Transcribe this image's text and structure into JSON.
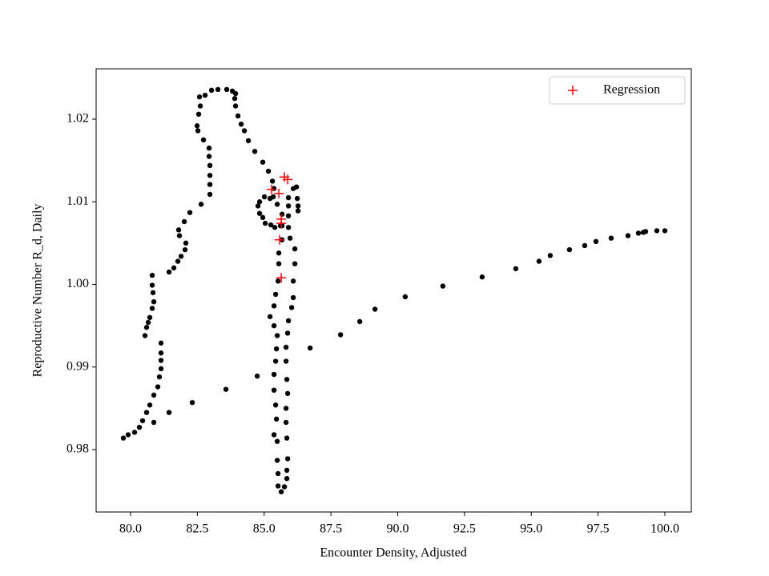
{
  "chart_data": {
    "type": "scatter",
    "x_label": "Encounter Density, Adjusted",
    "y_label": "Reproductive Number R_d, Daily",
    "xlim": [
      78.71,
      100.99
    ],
    "ylim": [
      0.97245,
      1.0261
    ],
    "xticks": [
      {
        "value": 80,
        "label": "80.0"
      },
      {
        "value": 82.5,
        "label": "82.5"
      },
      {
        "value": 85,
        "label": "85.0"
      },
      {
        "value": 87.5,
        "label": "87.5"
      },
      {
        "value": 90,
        "label": "90.0"
      },
      {
        "value": 92.5,
        "label": "92.5"
      },
      {
        "value": 95,
        "label": "95.0"
      },
      {
        "value": 97.5,
        "label": "97.5"
      },
      {
        "value": 100,
        "label": "100.0"
      }
    ],
    "yticks": [
      0.98,
      0.99,
      {
        "value": 1,
        "label": "1.00"
      },
      1.01,
      1.02
    ],
    "legend": "upper right",
    "series": [
      {
        "color": "#000000",
        "marker": "o",
        "x": [
          81.44,
          82.31,
          83.57,
          84.74,
          86.72,
          87.86,
          88.58,
          89.15,
          90.28,
          91.69,
          93.16,
          94.42,
          95.29,
          95.71,
          96.43,
          97.0,
          97.42,
          97.99,
          98.62,
          99.01,
          99.19,
          99.28,
          99.7,
          100.0,
          79.73,
          79.91,
          80.15,
          80.33,
          80.45,
          80.6,
          80.72,
          80.87,
          81.02,
          81.08,
          81.14,
          81.14,
          81.14,
          81.14,
          80.87,
          80.54,
          80.6,
          80.66,
          80.72,
          80.81,
          80.87,
          80.84,
          80.81,
          80.81,
          81.44,
          81.62,
          81.77,
          81.89,
          82.04,
          82.07,
          81.83,
          81.8,
          82.01,
          82.22,
          82.64,
          82.97,
          82.97,
          82.97,
          82.97,
          82.94,
          82.94,
          82.73,
          82.52,
          82.49,
          82.55,
          82.61,
          82.58,
          82.79,
          83.03,
          83.27,
          83.6,
          83.81,
          83.93,
          83.9,
          83.93,
          84.02,
          84.14,
          84.26,
          84.41,
          84.65,
          84.95,
          85.16,
          85.31,
          85.37,
          85.34,
          85.01,
          84.83,
          84.77,
          84.83,
          84.95,
          85.04,
          85.25,
          85.4,
          85.61,
          85.91,
          85.91,
          85.91,
          85.91,
          86.09,
          86.21,
          86.24,
          86.27,
          86.27,
          85.97,
          86.15,
          86.15,
          86.09,
          86.09,
          86.03,
          85.91,
          85.88,
          85.82,
          85.82,
          85.85,
          85.88,
          85.82,
          85.82,
          85.85,
          85.88,
          85.85,
          85.85,
          85.76,
          85.64,
          85.52,
          85.52,
          85.49,
          85.49,
          85.37,
          85.46,
          85.43,
          85.37,
          85.37,
          85.43,
          85.46,
          85.49,
          85.37,
          85.22,
          85.37,
          85.43,
          85.52,
          85.55,
          85.55,
          85.67,
          85.67,
          85.67,
          85.49,
          85.22
        ],
        "y": [
          0.9845,
          0.9857,
          0.9873,
          0.9889,
          0.9923,
          0.9939,
          0.9955,
          0.997,
          0.9985,
          0.9998,
          1.0009,
          1.0019,
          1.0028,
          1.0035,
          1.0042,
          1.0047,
          1.0052,
          1.0056,
          1.0059,
          1.0062,
          1.0063,
          1.0064,
          1.0065,
          1.0065,
          0.9814,
          0.9818,
          0.9821,
          0.9827,
          0.9835,
          0.9845,
          0.9854,
          0.9866,
          0.9876,
          0.9888,
          0.9898,
          0.9908,
          0.9917,
          0.9929,
          0.9833,
          0.9938,
          0.9948,
          0.9954,
          0.996,
          0.9971,
          0.9979,
          0.999,
          0.9999,
          1.0011,
          1.0015,
          1.002,
          1.0028,
          1.0034,
          1.0042,
          1.005,
          1.0059,
          1.0066,
          1.0076,
          1.0087,
          1.0097,
          1.0109,
          1.0121,
          1.0132,
          1.0144,
          1.0155,
          1.0165,
          1.0175,
          1.0186,
          1.0192,
          1.0206,
          1.0216,
          1.0227,
          1.0229,
          1.0235,
          1.0236,
          1.0236,
          1.0234,
          1.0231,
          1.0225,
          1.0216,
          1.0204,
          1.0194,
          1.0186,
          1.0174,
          1.0161,
          1.0148,
          1.0137,
          1.0125,
          1.0116,
          1.0106,
          1.0106,
          1.01,
          1.0095,
          1.0086,
          1.0081,
          1.0074,
          1.0072,
          1.0069,
          1.0071,
          1.0069,
          1.0083,
          1.0095,
          1.0105,
          1.0116,
          1.0118,
          1.0104,
          1.0095,
          1.0089,
          1.0056,
          1.0043,
          1.0025,
          1.0004,
          0.9984,
          0.9972,
          0.9956,
          0.9941,
          0.9924,
          0.9907,
          0.9885,
          0.9868,
          0.985,
          0.9833,
          0.9814,
          0.9789,
          0.9775,
          0.9765,
          0.9755,
          0.9749,
          0.9756,
          0.9771,
          0.9787,
          0.981,
          0.9818,
          0.9837,
          0.9854,
          0.9872,
          0.9891,
          0.9907,
          0.9922,
          0.9938,
          0.995,
          0.9961,
          0.9974,
          0.9988,
          1.0004,
          1.0025,
          1.0038,
          1.0054,
          1.0071,
          1.0085,
          1.0097,
          1.0104
        ]
      },
      {
        "name": "Regression",
        "color": "#ff0000",
        "marker": "+",
        "x": [
          85.76,
          85.88,
          85.28,
          85.55,
          85.64,
          85.64,
          85.58,
          85.64
        ],
        "y": [
          1.013,
          1.0127,
          1.0115,
          1.011,
          1.0079,
          1.0074,
          1.0054,
          1.0008
        ]
      }
    ]
  }
}
